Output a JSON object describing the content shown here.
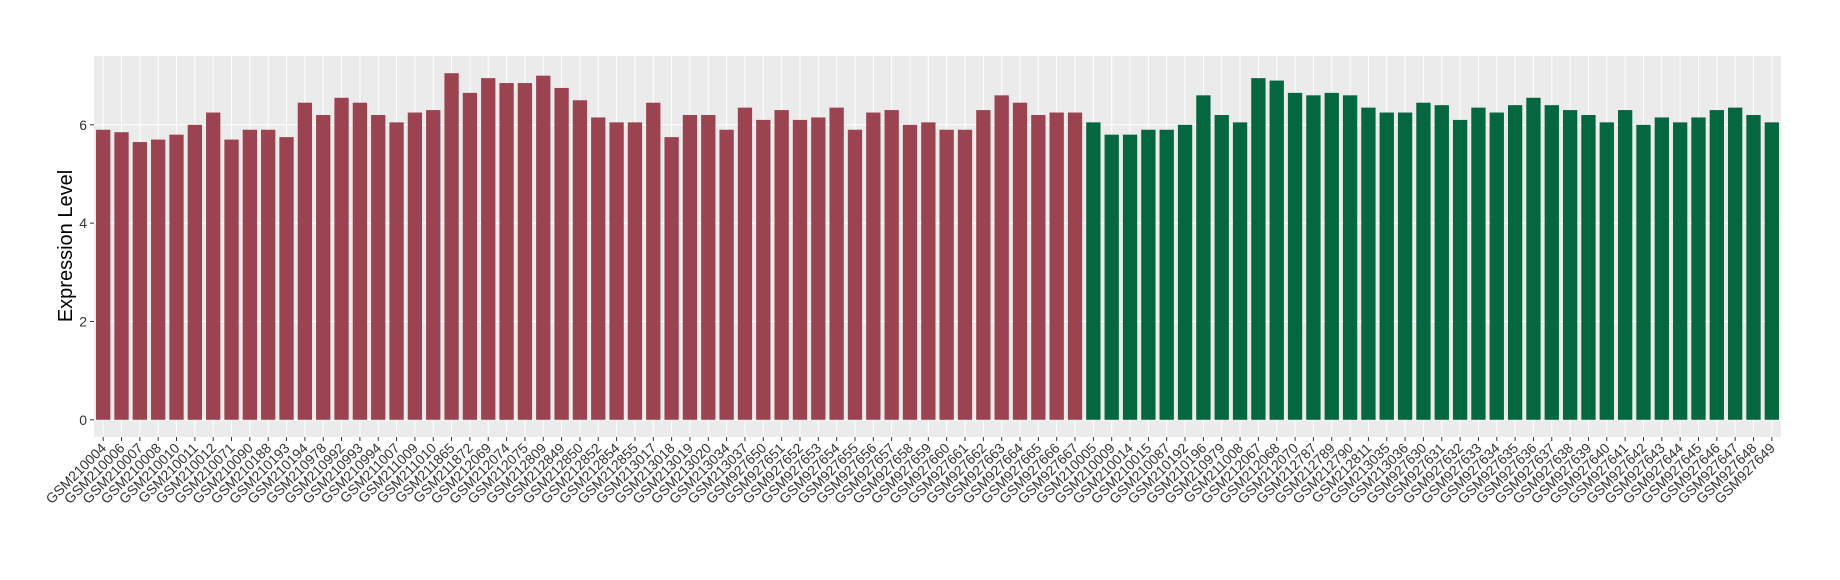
{
  "chart_data": {
    "type": "bar",
    "y_label": "Expression Level",
    "categories": [
      "GSM210004",
      "GSM210006",
      "GSM210007",
      "GSM210008",
      "GSM210010",
      "GSM210011",
      "GSM210012",
      "GSM210071",
      "GSM210090",
      "GSM210188",
      "GSM210193",
      "GSM210194",
      "GSM210978",
      "GSM210992",
      "GSM210993",
      "GSM210994",
      "GSM211007",
      "GSM211009",
      "GSM211010",
      "GSM211865",
      "GSM211872",
      "GSM212069",
      "GSM212074",
      "GSM212075",
      "GSM212809",
      "GSM212849",
      "GSM212850",
      "GSM212852",
      "GSM212854",
      "GSM212855",
      "GSM213017",
      "GSM213018",
      "GSM213019",
      "GSM213020",
      "GSM213034",
      "GSM213037",
      "GSM927650",
      "GSM927651",
      "GSM927652",
      "GSM927653",
      "GSM927654",
      "GSM927655",
      "GSM927656",
      "GSM927657",
      "GSM927658",
      "GSM927659",
      "GSM927660",
      "GSM927661",
      "GSM927662",
      "GSM927663",
      "GSM927664",
      "GSM927665",
      "GSM927666",
      "GSM927667",
      "GSM210005",
      "GSM210009",
      "GSM210014",
      "GSM210015",
      "GSM210087",
      "GSM210192",
      "GSM210196",
      "GSM210979",
      "GSM211008",
      "GSM212067",
      "GSM212068",
      "GSM212070",
      "GSM212787",
      "GSM212789",
      "GSM212790",
      "GSM212811",
      "GSM213035",
      "GSM213036",
      "GSM927630",
      "GSM927631",
      "GSM927632",
      "GSM927633",
      "GSM927634",
      "GSM927635",
      "GSM927636",
      "GSM927637",
      "GSM927638",
      "GSM927639",
      "GSM927640",
      "GSM927641",
      "GSM927642",
      "GSM927643",
      "GSM927644",
      "GSM927645",
      "GSM927646",
      "GSM927647",
      "GSM927648",
      "GSM927649"
    ],
    "values": [
      5.9,
      5.85,
      5.65,
      5.7,
      5.8,
      6.0,
      6.25,
      5.7,
      5.9,
      5.9,
      5.75,
      6.45,
      6.2,
      6.55,
      6.45,
      6.2,
      6.05,
      6.25,
      6.3,
      7.05,
      6.65,
      6.95,
      6.85,
      6.85,
      7.0,
      6.75,
      6.5,
      6.15,
      6.05,
      6.05,
      6.45,
      5.75,
      6.2,
      6.2,
      5.9,
      6.35,
      6.1,
      6.3,
      6.1,
      6.15,
      6.35,
      5.9,
      6.25,
      6.3,
      6.0,
      6.05,
      5.9,
      5.9,
      6.3,
      6.6,
      6.45,
      6.2,
      6.25,
      6.25,
      6.05,
      5.8,
      5.8,
      5.9,
      5.9,
      6.0,
      6.6,
      6.2,
      6.05,
      6.95,
      6.9,
      6.65,
      6.6,
      6.65,
      6.6,
      6.35,
      6.25,
      6.25,
      6.45,
      6.4,
      6.1,
      6.35,
      6.25,
      6.4,
      6.55,
      6.4,
      6.3,
      6.2,
      6.05,
      6.3,
      6.0,
      6.15,
      6.05,
      6.15,
      6.3,
      6.35,
      6.2,
      6.05
    ],
    "colors": [
      "#9b4351",
      "#9b4351",
      "#9b4351",
      "#9b4351",
      "#9b4351",
      "#9b4351",
      "#9b4351",
      "#9b4351",
      "#9b4351",
      "#9b4351",
      "#9b4351",
      "#9b4351",
      "#9b4351",
      "#9b4351",
      "#9b4351",
      "#9b4351",
      "#9b4351",
      "#9b4351",
      "#9b4351",
      "#9b4351",
      "#9b4351",
      "#9b4351",
      "#9b4351",
      "#9b4351",
      "#9b4351",
      "#9b4351",
      "#9b4351",
      "#9b4351",
      "#9b4351",
      "#9b4351",
      "#9b4351",
      "#9b4351",
      "#9b4351",
      "#9b4351",
      "#9b4351",
      "#9b4351",
      "#9b4351",
      "#9b4351",
      "#9b4351",
      "#9b4351",
      "#9b4351",
      "#9b4351",
      "#9b4351",
      "#9b4351",
      "#9b4351",
      "#9b4351",
      "#9b4351",
      "#9b4351",
      "#9b4351",
      "#9b4351",
      "#9b4351",
      "#9b4351",
      "#9b4351",
      "#9b4351",
      "#04673f",
      "#04673f",
      "#04673f",
      "#04673f",
      "#04673f",
      "#04673f",
      "#04673f",
      "#04673f",
      "#04673f",
      "#04673f",
      "#04673f",
      "#04673f",
      "#04673f",
      "#04673f",
      "#04673f",
      "#04673f",
      "#04673f",
      "#04673f",
      "#04673f",
      "#04673f",
      "#04673f",
      "#04673f",
      "#04673f",
      "#04673f",
      "#04673f",
      "#04673f",
      "#04673f",
      "#04673f",
      "#04673f",
      "#04673f",
      "#04673f",
      "#04673f",
      "#04673f",
      "#04673f",
      "#04673f",
      "#04673f",
      "#04673f",
      "#04673f"
    ],
    "ylim": [
      -0.35,
      7.4
    ],
    "yticks": [
      0,
      2,
      4,
      6
    ],
    "grid": true
  }
}
